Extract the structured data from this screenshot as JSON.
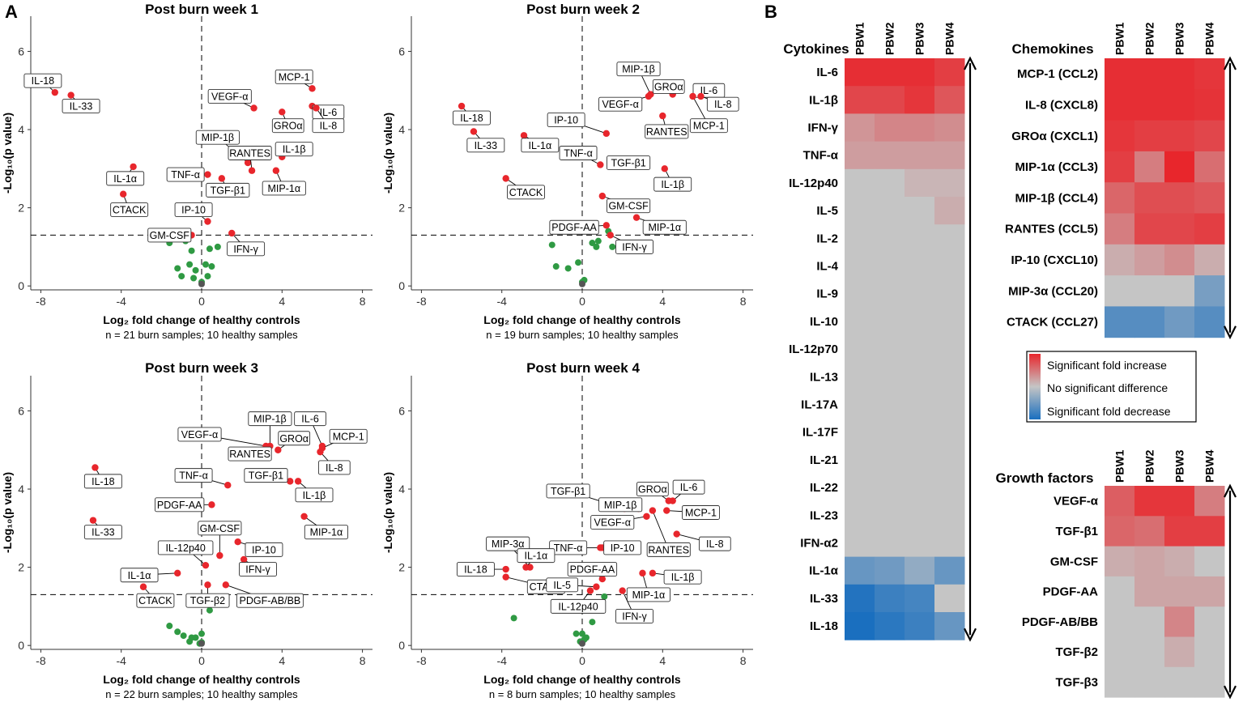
{
  "panel_labels": {
    "a": "A",
    "b": "B"
  },
  "colors": {
    "significant_up": "#e8262c",
    "not_significant": "#2f9a43",
    "zero_point": "#555555",
    "heat_high": "#e8262c",
    "heat_mid": "#c5c5c5",
    "heat_low": "#1a6fbf"
  },
  "chart_data": [
    {
      "type": "scatter",
      "title": "Post burn week 1",
      "xlabel": "Log₂ fold change of healthy controls",
      "ylabel": "-Log₁₀(p value)",
      "n_label": "n = 21 burn samples; 10 healthy samples",
      "xlim": [
        -8.5,
        8.5
      ],
      "ylim": [
        -0.1,
        6.9
      ],
      "xticks": [
        -8,
        -4,
        0,
        4,
        8
      ],
      "yticks": [
        0,
        2,
        4,
        6
      ],
      "threshold_y": 1.3,
      "labeled_points": [
        {
          "label": "IL-18",
          "x": -7.3,
          "y": 4.95,
          "lx": -7.9,
          "ly": 5.25
        },
        {
          "label": "IL-33",
          "x": -6.5,
          "y": 4.88,
          "lx": -6.0,
          "ly": 4.6
        },
        {
          "label": "VEGF-α",
          "x": 2.6,
          "y": 4.55,
          "lx": 1.4,
          "ly": 4.85
        },
        {
          "label": "MCP-1",
          "x": 5.5,
          "y": 5.05,
          "lx": 4.6,
          "ly": 5.35
        },
        {
          "label": "GROα",
          "x": 4.0,
          "y": 4.45,
          "lx": 4.3,
          "ly": 4.1
        },
        {
          "label": "IL-6",
          "x": 5.5,
          "y": 4.6,
          "lx": 6.3,
          "ly": 4.45
        },
        {
          "label": "IL-8",
          "x": 5.7,
          "y": 4.55,
          "lx": 6.3,
          "ly": 4.1
        },
        {
          "label": "MIP-1β",
          "x": 2.3,
          "y": 3.15,
          "lx": 0.8,
          "ly": 3.8
        },
        {
          "label": "RANTES",
          "x": 2.5,
          "y": 2.95,
          "lx": 2.4,
          "ly": 3.4
        },
        {
          "label": "IL-1β",
          "x": 4.0,
          "y": 3.3,
          "lx": 4.6,
          "ly": 3.5
        },
        {
          "label": "TGF-β1",
          "x": 1.0,
          "y": 2.75,
          "lx": 1.3,
          "ly": 2.45
        },
        {
          "label": "MIP-1α",
          "x": 3.7,
          "y": 2.95,
          "lx": 4.1,
          "ly": 2.5
        },
        {
          "label": "TNF-α",
          "x": 0.3,
          "y": 2.85,
          "lx": -0.8,
          "ly": 2.85
        },
        {
          "label": "IL-1α",
          "x": -3.4,
          "y": 3.05,
          "lx": -3.8,
          "ly": 2.75
        },
        {
          "label": "CTACK",
          "x": -3.9,
          "y": 2.35,
          "lx": -3.6,
          "ly": 1.95
        },
        {
          "label": "IP-10",
          "x": 0.3,
          "y": 1.65,
          "lx": -0.4,
          "ly": 1.95
        },
        {
          "label": "GM-CSF",
          "x": -0.5,
          "y": 1.3,
          "lx": -1.6,
          "ly": 1.3
        },
        {
          "label": "IFN-γ",
          "x": 1.5,
          "y": 1.35,
          "lx": 2.2,
          "ly": 0.95
        }
      ],
      "nonsig_points": [
        [
          -0.8,
          1.15
        ],
        [
          -1.6,
          1.1
        ],
        [
          0.4,
          0.95
        ],
        [
          0.8,
          1.0
        ],
        [
          -0.5,
          0.9
        ],
        [
          -0.6,
          0.55
        ],
        [
          -1.2,
          0.45
        ],
        [
          0.2,
          0.55
        ],
        [
          -0.3,
          0.4
        ],
        [
          0.5,
          0.5
        ],
        [
          -0.4,
          0.2
        ],
        [
          0.3,
          0.25
        ],
        [
          -1.0,
          0.25
        ],
        [
          0.0,
          0.1
        ]
      ]
    },
    {
      "type": "scatter",
      "title": "Post burn week 2",
      "xlabel": "Log₂ fold change of healthy controls",
      "ylabel": "-Log₁₀(p value)",
      "n_label": "n = 19 burn samples; 10 healthy samples",
      "xlim": [
        -8.5,
        8.5
      ],
      "ylim": [
        -0.1,
        6.9
      ],
      "xticks": [
        -8,
        -4,
        0,
        4,
        8
      ],
      "yticks": [
        0,
        2,
        4,
        6
      ],
      "threshold_y": 1.3,
      "labeled_points": [
        {
          "label": "MIP-1β",
          "x": 3.4,
          "y": 4.9,
          "lx": 2.8,
          "ly": 5.55
        },
        {
          "label": "GROα",
          "x": 4.5,
          "y": 4.9,
          "lx": 4.3,
          "ly": 5.1
        },
        {
          "label": "IL-6",
          "x": 5.8,
          "y": 4.95,
          "lx": 6.3,
          "ly": 5.0
        },
        {
          "label": "VEGF-α",
          "x": 3.3,
          "y": 4.85,
          "lx": 1.9,
          "ly": 4.65
        },
        {
          "label": "IL-8",
          "x": 5.9,
          "y": 4.85,
          "lx": 7.0,
          "ly": 4.65
        },
        {
          "label": "RANTES",
          "x": 4.0,
          "y": 4.35,
          "lx": 4.2,
          "ly": 3.95
        },
        {
          "label": "MCP-1",
          "x": 5.5,
          "y": 4.85,
          "lx": 6.3,
          "ly": 4.1
        },
        {
          "label": "IL-18",
          "x": -6.0,
          "y": 4.6,
          "lx": -5.5,
          "ly": 4.3
        },
        {
          "label": "IP-10",
          "x": 1.2,
          "y": 3.9,
          "lx": -0.8,
          "ly": 4.25
        },
        {
          "label": "IL-33",
          "x": -5.4,
          "y": 3.95,
          "lx": -4.8,
          "ly": 3.6
        },
        {
          "label": "IL-1α",
          "x": -2.9,
          "y": 3.85,
          "lx": -2.1,
          "ly": 3.6
        },
        {
          "label": "TNF-α",
          "x": 0.9,
          "y": 3.1,
          "lx": -0.2,
          "ly": 3.4
        },
        {
          "label": "TGF-β1",
          "x": 2.2,
          "y": 3.15,
          "lx": 2.3,
          "ly": 3.15
        },
        {
          "label": "IL-1β",
          "x": 4.1,
          "y": 3.0,
          "lx": 4.5,
          "ly": 2.6
        },
        {
          "label": "CTACK",
          "x": -3.8,
          "y": 2.75,
          "lx": -2.8,
          "ly": 2.4
        },
        {
          "label": "GM-CSF",
          "x": 1.0,
          "y": 2.3,
          "lx": 2.3,
          "ly": 2.05
        },
        {
          "label": "PDGF-AA",
          "x": 1.2,
          "y": 1.55,
          "lx": -0.4,
          "ly": 1.5
        },
        {
          "label": "MIP-1α",
          "x": 2.7,
          "y": 1.75,
          "lx": 4.1,
          "ly": 1.5
        },
        {
          "label": "IFN-γ",
          "x": 1.4,
          "y": 1.3,
          "lx": 2.6,
          "ly": 1.0
        }
      ],
      "nonsig_points": [
        [
          -1.5,
          1.05
        ],
        [
          -1.3,
          0.5
        ],
        [
          -0.7,
          0.45
        ],
        [
          0.5,
          1.1
        ],
        [
          0.8,
          1.15
        ],
        [
          1.3,
          1.4
        ],
        [
          0.7,
          1.0
        ],
        [
          -0.2,
          0.6
        ],
        [
          0.1,
          0.15
        ],
        [
          1.5,
          1.0
        ],
        [
          0.0,
          0.1
        ]
      ]
    },
    {
      "type": "scatter",
      "title": "Post burn week 3",
      "xlabel": "Log₂ fold change of healthy controls",
      "ylabel": "-Log₁₀(p value)",
      "n_label": "n = 22 burn samples; 10 healthy samples",
      "xlim": [
        -8.5,
        8.5
      ],
      "ylim": [
        -0.1,
        6.9
      ],
      "xticks": [
        -8,
        -4,
        0,
        4,
        8
      ],
      "yticks": [
        0,
        2,
        4,
        6
      ],
      "threshold_y": 1.3,
      "labeled_points": [
        {
          "label": "MIP-1β",
          "x": 3.4,
          "y": 5.1,
          "lx": 3.4,
          "ly": 5.8
        },
        {
          "label": "IL-6",
          "x": 6.0,
          "y": 5.1,
          "lx": 5.4,
          "ly": 5.8
        },
        {
          "label": "VEGF-α",
          "x": 3.2,
          "y": 5.1,
          "lx": -0.1,
          "ly": 5.4
        },
        {
          "label": "GROα",
          "x": 3.8,
          "y": 5.0,
          "lx": 4.6,
          "ly": 5.3
        },
        {
          "label": "MCP-1",
          "x": 6.0,
          "y": 5.05,
          "lx": 7.3,
          "ly": 5.35
        },
        {
          "label": "RANTES",
          "x": 3.0,
          "y": 5.0,
          "lx": 2.4,
          "ly": 4.9
        },
        {
          "label": "IL-8",
          "x": 5.9,
          "y": 4.95,
          "lx": 6.6,
          "ly": 4.55
        },
        {
          "label": "IL-18",
          "x": -5.3,
          "y": 4.55,
          "lx": -4.9,
          "ly": 4.2
        },
        {
          "label": "TNF-α",
          "x": 1.3,
          "y": 4.1,
          "lx": -0.4,
          "ly": 4.35
        },
        {
          "label": "TGF-β1",
          "x": 4.4,
          "y": 4.2,
          "lx": 3.2,
          "ly": 4.35
        },
        {
          "label": "IL-1β",
          "x": 4.8,
          "y": 4.2,
          "lx": 5.6,
          "ly": 3.85
        },
        {
          "label": "PDGF-AA",
          "x": 0.5,
          "y": 3.6,
          "lx": -1.1,
          "ly": 3.6
        },
        {
          "label": "MIP-1α",
          "x": 5.1,
          "y": 3.3,
          "lx": 6.2,
          "ly": 2.9
        },
        {
          "label": "IL-33",
          "x": -5.4,
          "y": 3.2,
          "lx": -4.9,
          "ly": 2.9
        },
        {
          "label": "GM-CSF",
          "x": 0.9,
          "y": 2.3,
          "lx": 0.9,
          "ly": 3.0
        },
        {
          "label": "IP-10",
          "x": 1.8,
          "y": 2.65,
          "lx": 3.1,
          "ly": 2.45
        },
        {
          "label": "IL-12p40",
          "x": 0.2,
          "y": 2.05,
          "lx": -0.8,
          "ly": 2.5
        },
        {
          "label": "IFN-γ",
          "x": 2.1,
          "y": 2.2,
          "lx": 2.8,
          "ly": 1.95
        },
        {
          "label": "IL-1α",
          "x": -1.2,
          "y": 1.85,
          "lx": -3.1,
          "ly": 1.8
        },
        {
          "label": "CTACK",
          "x": -2.9,
          "y": 1.5,
          "lx": -2.3,
          "ly": 1.15
        },
        {
          "label": "TGF-β2",
          "x": 0.3,
          "y": 1.55,
          "lx": 0.3,
          "ly": 1.15
        },
        {
          "label": "PDGF-AB/BB",
          "x": 1.2,
          "y": 1.55,
          "lx": 3.4,
          "ly": 1.15
        }
      ],
      "nonsig_points": [
        [
          -1.6,
          0.5
        ],
        [
          -0.9,
          0.25
        ],
        [
          -0.6,
          0.1
        ],
        [
          -1.2,
          0.35
        ],
        [
          0.4,
          0.9
        ],
        [
          -0.1,
          0.05
        ],
        [
          -0.5,
          0.2
        ],
        [
          0.0,
          0.3
        ],
        [
          -0.3,
          0.2
        ],
        [
          0.0,
          0.08
        ]
      ]
    },
    {
      "type": "scatter",
      "title": "Post burn week 4",
      "xlabel": "Log₂ fold change of healthy controls",
      "ylabel": "-Log₁₀(p value)",
      "n_label": "n = 8 burn samples; 10 healthy samples",
      "xlim": [
        -8.5,
        8.5
      ],
      "ylim": [
        -0.1,
        6.9
      ],
      "xticks": [
        -8,
        -4,
        0,
        4,
        8
      ],
      "yticks": [
        0,
        2,
        4,
        6
      ],
      "threshold_y": 1.3,
      "labeled_points": [
        {
          "label": "GROα",
          "x": 4.3,
          "y": 3.7,
          "lx": 3.5,
          "ly": 4.0
        },
        {
          "label": "IL-6",
          "x": 4.5,
          "y": 3.7,
          "lx": 5.3,
          "ly": 4.05
        },
        {
          "label": "TGF-β1",
          "x": 2.1,
          "y": 3.5,
          "lx": -0.7,
          "ly": 3.95
        },
        {
          "label": "MIP-1β",
          "x": 2.8,
          "y": 3.5,
          "lx": 1.9,
          "ly": 3.6
        },
        {
          "label": "MCP-1",
          "x": 4.2,
          "y": 3.45,
          "lx": 5.9,
          "ly": 3.4
        },
        {
          "label": "VEGF-α",
          "x": 3.2,
          "y": 3.3,
          "lx": 1.5,
          "ly": 3.15
        },
        {
          "label": "RANTES",
          "x": 3.5,
          "y": 3.45,
          "lx": 4.3,
          "ly": 2.45
        },
        {
          "label": "IL-8",
          "x": 4.7,
          "y": 2.85,
          "lx": 6.6,
          "ly": 2.6
        },
        {
          "label": "MIP-3α",
          "x": -2.6,
          "y": 2.0,
          "lx": -3.7,
          "ly": 2.6
        },
        {
          "label": "TNF-α",
          "x": 0.9,
          "y": 2.5,
          "lx": -0.7,
          "ly": 2.5
        },
        {
          "label": "IP-10",
          "x": 1.0,
          "y": 2.5,
          "lx": 2.0,
          "ly": 2.5
        },
        {
          "label": "IL-1α",
          "x": -2.8,
          "y": 2.0,
          "lx": -2.3,
          "ly": 2.3
        },
        {
          "label": "IL-18",
          "x": -3.8,
          "y": 1.95,
          "lx": -5.3,
          "ly": 1.95
        },
        {
          "label": "PDGF-AA",
          "x": 1.0,
          "y": 1.7,
          "lx": 0.5,
          "ly": 1.95
        },
        {
          "label": "CTACK",
          "x": -3.8,
          "y": 1.75,
          "lx": -1.8,
          "ly": 1.5
        },
        {
          "label": "IL-1β",
          "x": 3.5,
          "y": 1.85,
          "lx": 5.0,
          "ly": 1.75
        },
        {
          "label": "IL-5",
          "x": 0.7,
          "y": 1.5,
          "lx": -1.0,
          "ly": 1.55
        },
        {
          "label": "MIP-1α",
          "x": 3.0,
          "y": 1.85,
          "lx": 3.3,
          "ly": 1.3
        },
        {
          "label": "IL-12p40",
          "x": 0.4,
          "y": 1.4,
          "lx": -0.2,
          "ly": 1.0
        },
        {
          "label": "IFN-γ",
          "x": 2.0,
          "y": 1.4,
          "lx": 2.6,
          "ly": 0.75
        }
      ],
      "nonsig_points": [
        [
          -3.4,
          0.7
        ],
        [
          0.5,
          0.6
        ],
        [
          1.1,
          1.25
        ],
        [
          0.0,
          0.3
        ],
        [
          -0.3,
          0.3
        ],
        [
          0.2,
          0.2
        ],
        [
          -0.1,
          0.1
        ],
        [
          0.1,
          0.15
        ],
        [
          0.0,
          0.1
        ]
      ]
    },
    {
      "type": "heatmap",
      "title": "Cytokines",
      "columns": [
        "PBW1",
        "PBW2",
        "PBW3",
        "PBW4"
      ],
      "rows": [
        "IL-6",
        "IL-1β",
        "IFN-γ",
        "TNF-α",
        "IL-12p40",
        "IL-5",
        "IL-2",
        "IL-4",
        "IL-9",
        "IL-10",
        "IL-12p70",
        "IL-13",
        "IL-17A",
        "IL-17F",
        "IL-21",
        "IL-22",
        "IL-23",
        "IFN-α2",
        "IL-1α",
        "IL-33",
        "IL-18"
      ],
      "values": [
        [
          0.95,
          0.95,
          0.95,
          0.85
        ],
        [
          0.8,
          0.8,
          0.9,
          0.7
        ],
        [
          0.3,
          0.4,
          0.4,
          0.35
        ],
        [
          0.25,
          0.25,
          0.25,
          0.25
        ],
        [
          0,
          0,
          0.1,
          0.1
        ],
        [
          0,
          0,
          0,
          0.15
        ],
        [
          0,
          0,
          0,
          0
        ],
        [
          0,
          0,
          0,
          0
        ],
        [
          0,
          0,
          0,
          0
        ],
        [
          0,
          0,
          0,
          0
        ],
        [
          0,
          0,
          0,
          0
        ],
        [
          0,
          0,
          0,
          0
        ],
        [
          0,
          0,
          0,
          0
        ],
        [
          0,
          0,
          0,
          0
        ],
        [
          0,
          0,
          0,
          0
        ],
        [
          0,
          0,
          0,
          0
        ],
        [
          0,
          0,
          0,
          0
        ],
        [
          0,
          0,
          0,
          0
        ],
        [
          -0.55,
          -0.5,
          -0.3,
          -0.55
        ],
        [
          -0.95,
          -0.8,
          -0.75,
          0
        ],
        [
          -1.0,
          -0.9,
          -0.8,
          -0.55
        ]
      ]
    },
    {
      "type": "heatmap",
      "title": "Chemokines",
      "columns": [
        "PBW1",
        "PBW2",
        "PBW3",
        "PBW4"
      ],
      "rows": [
        "MCP-1 (CCL2)",
        "IL-8 (CXCL8)",
        "GROα (CXCL1)",
        "MIP-1α (CCL3)",
        "MIP-1β (CCL4)",
        "RANTES (CCL5)",
        "IP-10 (CXCL10)",
        "MIP-3α (CCL20)",
        "CTACK (CCL27)"
      ],
      "values": [
        [
          0.95,
          0.95,
          0.95,
          0.9
        ],
        [
          0.95,
          0.95,
          0.95,
          0.92
        ],
        [
          0.9,
          0.85,
          0.85,
          0.8
        ],
        [
          0.85,
          0.45,
          1.0,
          0.55
        ],
        [
          0.6,
          0.75,
          0.75,
          0.7
        ],
        [
          0.45,
          0.8,
          0.8,
          0.85
        ],
        [
          0.15,
          0.25,
          0.35,
          0.15
        ],
        [
          0,
          0,
          0,
          -0.45
        ],
        [
          -0.65,
          -0.65,
          -0.5,
          -0.65
        ]
      ]
    },
    {
      "type": "heatmap",
      "title": "Growth factors",
      "columns": [
        "PBW1",
        "PBW2",
        "PBW3",
        "PBW4"
      ],
      "rows": [
        "VEGF-α",
        "TGF-β1",
        "GM-CSF",
        "PDGF-AA",
        "PDGF-AB/BB",
        "TGF-β2",
        "TGF-β3"
      ],
      "values": [
        [
          0.65,
          0.9,
          0.9,
          0.45
        ],
        [
          0.6,
          0.55,
          0.85,
          0.85
        ],
        [
          0.15,
          0.2,
          0.15,
          0
        ],
        [
          0,
          0.2,
          0.2,
          0.2
        ],
        [
          0,
          0,
          0.4,
          0
        ],
        [
          0,
          0,
          0.15,
          0
        ],
        [
          0,
          0,
          0,
          0
        ]
      ]
    }
  ],
  "legend": {
    "entries": [
      "Significant fold increase",
      "No significant difference",
      "Significant fold decrease"
    ]
  }
}
